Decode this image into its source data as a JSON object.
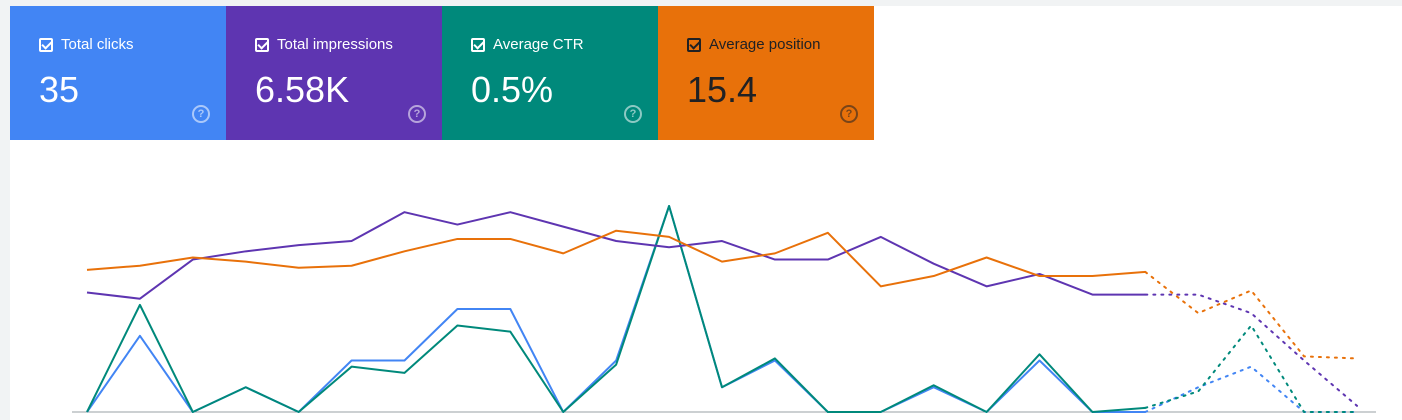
{
  "metrics": [
    {
      "label": "Total clicks",
      "value": "35",
      "color": "#4285f4",
      "text_color": "#ffffff",
      "checked": true,
      "icon": "help-icon"
    },
    {
      "label": "Total impressions",
      "value": "6.58K",
      "color": "#5e35b1",
      "text_color": "#ffffff",
      "checked": true,
      "icon": "help-icon"
    },
    {
      "label": "Average CTR",
      "value": "0.5%",
      "color": "#00897b",
      "text_color": "#ffffff",
      "checked": true,
      "icon": "help-icon"
    },
    {
      "label": "Average position",
      "value": "15.4",
      "color": "#e8710a",
      "text_color": "#202124",
      "checked": true,
      "icon": "help-icon"
    }
  ],
  "chart_data": {
    "type": "line",
    "x": [
      1,
      2,
      3,
      4,
      5,
      6,
      7,
      8,
      9,
      10,
      11,
      12,
      13,
      14,
      15,
      16,
      17,
      18,
      19,
      20,
      21,
      22,
      23,
      24,
      25
    ],
    "ylim": [
      0,
      100
    ],
    "grid": false,
    "solid_until_index": 20,
    "series": [
      {
        "color": "#4285f4",
        "values": [
          0,
          37,
          0,
          12,
          0,
          25,
          25,
          50,
          50,
          0,
          25,
          100,
          12,
          25,
          0,
          0,
          12,
          0,
          25,
          0,
          0,
          12,
          22,
          0,
          0
        ]
      },
      {
        "color": "#00897b",
        "values": [
          0,
          52,
          0,
          12,
          0,
          22,
          19,
          42,
          39,
          0,
          23,
          100,
          12,
          26,
          0,
          0,
          13,
          0,
          28,
          0,
          2,
          10,
          42,
          0,
          0
        ]
      },
      {
        "color": "#5e35b1",
        "values": [
          58,
          55,
          74,
          78,
          81,
          83,
          97,
          91,
          97,
          90,
          83,
          80,
          83,
          74,
          74,
          85,
          72,
          61,
          67,
          57,
          57,
          57,
          48,
          25,
          3
        ]
      },
      {
        "color": "#e8710a",
        "values": [
          69,
          71,
          75,
          73,
          70,
          71,
          78,
          84,
          84,
          77,
          88,
          85,
          73,
          77,
          87,
          61,
          66,
          75,
          66,
          66,
          68,
          48,
          59,
          27,
          26
        ]
      }
    ]
  }
}
